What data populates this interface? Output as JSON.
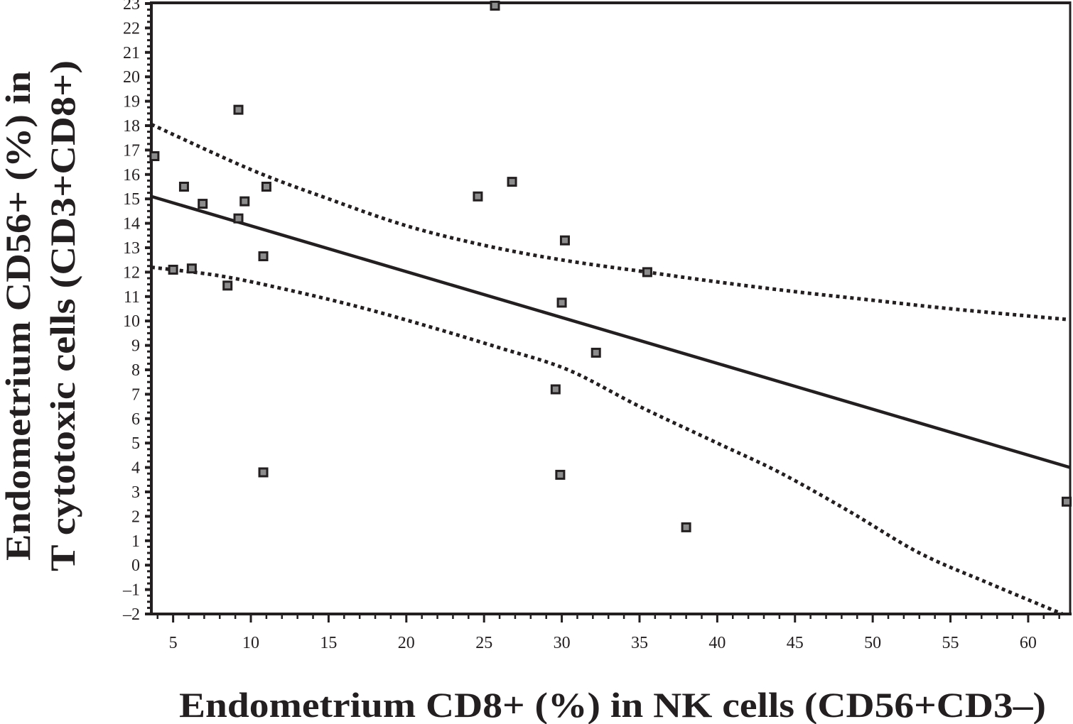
{
  "chart_data": {
    "type": "scatter",
    "title": "",
    "xlabel": "Endometrium CD8+ (%) in NK cells (CD56+CD3–)",
    "ylabel_lines": [
      "Endometrium CD56+ (%) in",
      "T cytotoxic cells (CD3+CD8+)"
    ],
    "xlim": [
      3.6,
      62.7
    ],
    "ylim": [
      -2,
      23
    ],
    "grid": false,
    "legend": "none",
    "x_ticks": [
      5,
      10,
      15,
      20,
      25,
      30,
      35,
      40,
      45,
      50,
      55,
      60
    ],
    "x_tick_labels": [
      "5",
      "10",
      "15",
      "20",
      "25",
      "30",
      "35",
      "40",
      "45",
      "50",
      "55",
      "60"
    ],
    "y_ticks": [
      -2,
      -1,
      0,
      1,
      2,
      3,
      4,
      5,
      6,
      7,
      8,
      9,
      10,
      11,
      12,
      13,
      14,
      15,
      16,
      17,
      18,
      19,
      20,
      21,
      22,
      23
    ],
    "y_tick_labels": [
      "–2",
      "–1",
      "0",
      "1",
      "2",
      "3",
      "4",
      "5",
      "6",
      "7",
      "8",
      "9",
      "10",
      "11",
      "12",
      "13",
      "14",
      "15",
      "16",
      "17",
      "18",
      "19",
      "20",
      "21",
      "22",
      "23"
    ],
    "series": [
      {
        "name": "observations",
        "type": "scatter",
        "marker": "square",
        "points": [
          {
            "x": 3.8,
            "y": 16.75
          },
          {
            "x": 5.7,
            "y": 15.5
          },
          {
            "x": 6.9,
            "y": 14.8
          },
          {
            "x": 9.2,
            "y": 18.65
          },
          {
            "x": 9.6,
            "y": 14.9
          },
          {
            "x": 9.2,
            "y": 14.2
          },
          {
            "x": 11.0,
            "y": 15.5
          },
          {
            "x": 10.8,
            "y": 12.65
          },
          {
            "x": 5.0,
            "y": 12.1
          },
          {
            "x": 6.2,
            "y": 12.15
          },
          {
            "x": 8.5,
            "y": 11.45
          },
          {
            "x": 10.8,
            "y": 3.8
          },
          {
            "x": 25.7,
            "y": 22.95
          },
          {
            "x": 24.6,
            "y": 15.1
          },
          {
            "x": 26.8,
            "y": 15.7
          },
          {
            "x": 30.2,
            "y": 13.3
          },
          {
            "x": 35.5,
            "y": 12.0
          },
          {
            "x": 30.0,
            "y": 10.75
          },
          {
            "x": 32.2,
            "y": 8.7
          },
          {
            "x": 29.6,
            "y": 7.2
          },
          {
            "x": 29.9,
            "y": 3.7
          },
          {
            "x": 38.0,
            "y": 1.55
          },
          {
            "x": 62.5,
            "y": 2.6
          }
        ]
      },
      {
        "name": "regression line",
        "type": "line",
        "style": "solid",
        "points": [
          {
            "x": 3.6,
            "y": 15.1
          },
          {
            "x": 62.7,
            "y": 4.0
          }
        ]
      },
      {
        "name": "upper confidence band",
        "type": "line",
        "style": "dotted",
        "points": [
          {
            "x": 3.6,
            "y": 18.05
          },
          {
            "x": 10,
            "y": 16.2
          },
          {
            "x": 15,
            "y": 15.0
          },
          {
            "x": 20,
            "y": 13.9
          },
          {
            "x": 25,
            "y": 13.1
          },
          {
            "x": 30,
            "y": 12.5
          },
          {
            "x": 35.5,
            "y": 12.0
          },
          {
            "x": 40,
            "y": 11.6
          },
          {
            "x": 45,
            "y": 11.2
          },
          {
            "x": 50,
            "y": 10.85
          },
          {
            "x": 55,
            "y": 10.5
          },
          {
            "x": 62.7,
            "y": 10.05
          }
        ]
      },
      {
        "name": "lower confidence band",
        "type": "line",
        "style": "dotted",
        "points": [
          {
            "x": 3.6,
            "y": 12.2
          },
          {
            "x": 8,
            "y": 11.85
          },
          {
            "x": 12.2,
            "y": 11.3
          },
          {
            "x": 16.8,
            "y": 10.6
          },
          {
            "x": 21.3,
            "y": 9.8
          },
          {
            "x": 26,
            "y": 8.9
          },
          {
            "x": 30.4,
            "y": 8.0
          },
          {
            "x": 35,
            "y": 6.5
          },
          {
            "x": 40,
            "y": 5.0
          },
          {
            "x": 44,
            "y": 3.8
          },
          {
            "x": 48.5,
            "y": 2.2
          },
          {
            "x": 53,
            "y": 0.5
          },
          {
            "x": 57.5,
            "y": -0.75
          },
          {
            "x": 62.2,
            "y": -2.0
          }
        ]
      }
    ]
  },
  "colors": {
    "ink": "#231f20",
    "marker_fill": "#8c8c8c",
    "background": "#ffffff"
  }
}
